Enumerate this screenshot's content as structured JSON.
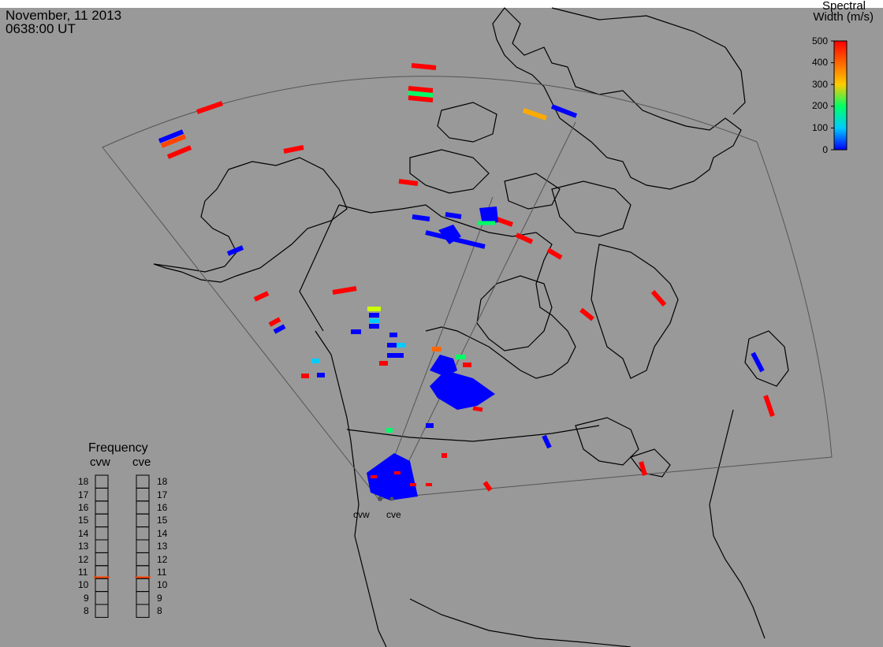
{
  "header": {
    "date": "November, 11 2013",
    "time": "0638:00 UT"
  },
  "colorbar": {
    "title_line1": "Spectral",
    "title_line2": "Width (m/s)",
    "ticks": [
      "500",
      "400",
      "300",
      "200",
      "100",
      "0"
    ],
    "stops": [
      "#0000ff",
      "#00ccff",
      "#00ff66",
      "#ffcc00",
      "#ff6600",
      "#ff0000"
    ]
  },
  "frequency": {
    "title": "Frequency",
    "radars": [
      {
        "name": "cvw",
        "value": 10.6
      },
      {
        "name": "cve",
        "value": 10.6
      }
    ],
    "scale": [
      "18",
      "17",
      "16",
      "15",
      "14",
      "13",
      "12",
      "11",
      "10",
      "9",
      "8"
    ],
    "marker_color": "#ff4400"
  },
  "sites": [
    {
      "name": "cvw"
    },
    {
      "name": "cve"
    }
  ],
  "colors": {
    "background": "#999999",
    "land_outline": "#000000",
    "fov_outline": "#555555"
  }
}
